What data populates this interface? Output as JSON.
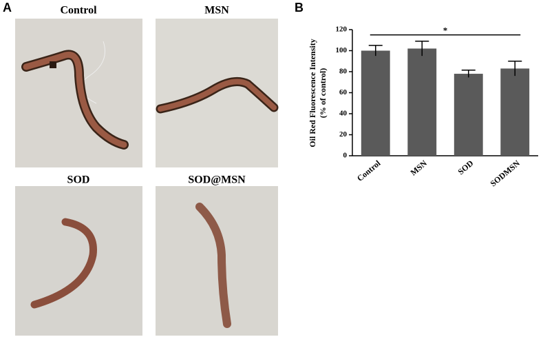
{
  "panel_a": {
    "label": "A",
    "images": [
      {
        "label": "Control"
      },
      {
        "label": "MSN"
      },
      {
        "label": "SOD"
      },
      {
        "label": "SOD@MSN"
      }
    ]
  },
  "chart_data": {
    "type": "bar",
    "panel_label": "B",
    "ylabel": [
      "Oil Red Fluorescence Intensity",
      "(% of control)"
    ],
    "categories": [
      "Control",
      "MSN",
      "SOD",
      "SODMSN"
    ],
    "series": [
      {
        "color": "#5a5a5a",
        "values": [
          100,
          102,
          78,
          83
        ],
        "errors": [
          5,
          7,
          3.5,
          7
        ]
      }
    ],
    "ylim": [
      0,
      120
    ],
    "yticks": [
      0,
      20,
      40,
      60,
      80,
      100,
      120
    ],
    "annotations": [
      {
        "text": "*",
        "from": "Control",
        "to": "SODMSN",
        "y": 115
      }
    ]
  }
}
